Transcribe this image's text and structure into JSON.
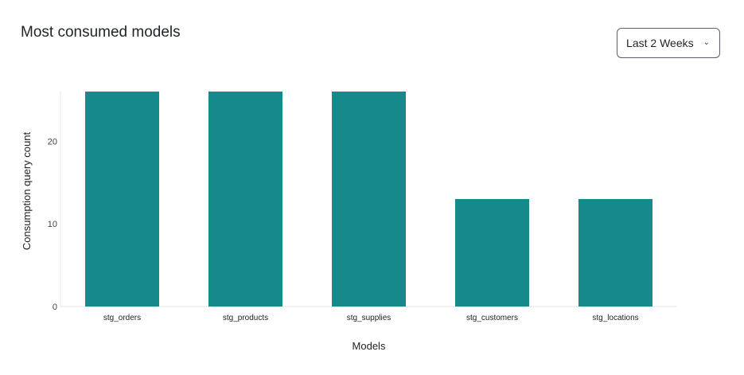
{
  "header": {
    "title": "Most consumed models"
  },
  "filter": {
    "selected": "Last 2 Weeks",
    "icon": "chevron-down-icon"
  },
  "chart_data": {
    "type": "bar",
    "title": "",
    "xlabel": "Models",
    "ylabel": "Consumption query count",
    "categories": [
      "stg_orders",
      "stg_products",
      "stg_supplies",
      "stg_customers",
      "stg_locations"
    ],
    "values": [
      26,
      26,
      26,
      13,
      13
    ],
    "ylim": [
      0,
      26
    ],
    "yticks": [
      0,
      10,
      20
    ],
    "grid": false,
    "color": "#168a8a"
  }
}
